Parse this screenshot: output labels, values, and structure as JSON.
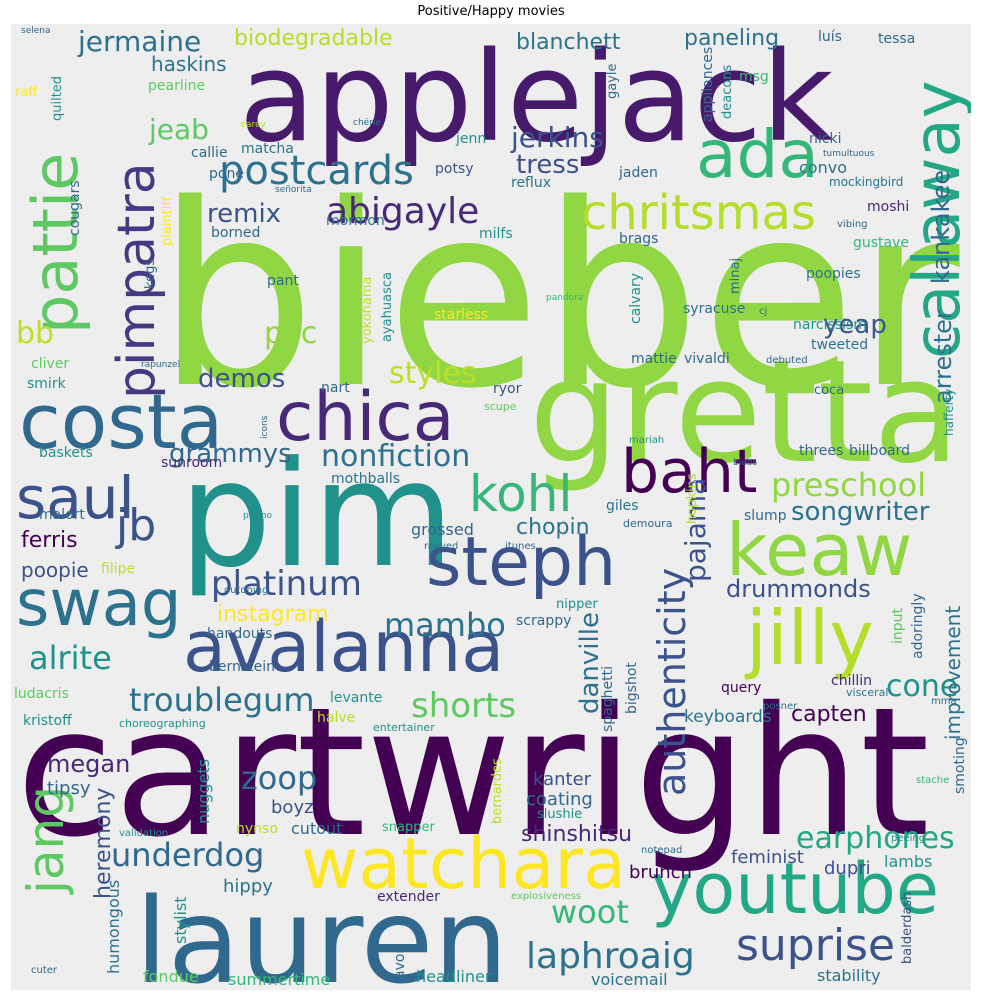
{
  "title": "Positive/Happy movies",
  "colors": {
    "purple": "#440154",
    "indigo": "#3b528b",
    "blue": "#31688e",
    "teal": "#21918c",
    "green": "#35b779",
    "lime": "#90d743",
    "yellow": "#fde725"
  },
  "words": {
    "bieber": "bieber",
    "cartwright": "cartwright",
    "applejack": "applejack",
    "pim": "pim",
    "gretta": "gretta",
    "lauren": "lauren",
    "watchara": "watchara",
    "youtube": "youtube",
    "costa": "costa",
    "chica": "chica",
    "steph": "steph",
    "avalanna": "avalanna",
    "keaw": "keaw",
    "jilly": "jilly",
    "swag": "swag",
    "saul": "saul",
    "baht": "baht",
    "kohl": "kohl",
    "ada": "ada",
    "pimpatra": "pimpatra",
    "pattie": "pattie",
    "callaway": "callaway",
    "postcards": "postcards",
    "chritsmas": "chritsmas",
    "abigayle": "abigayle",
    "platinum": "platinum",
    "suprise": "suprise",
    "laphroaig": "laphroaig",
    "troublegum": "troublegum",
    "authenticity": "authenticity",
    "jang": "jang",
    "jb": "jb",
    "alrite": "alrite",
    "mambo": "mambo",
    "shorts": "shorts",
    "underdog": "underdog",
    "woot": "woot",
    "earphones": "earphones",
    "nonfiction": "nonfiction",
    "grammys": "grammys",
    "preschool": "preschool",
    "songwriter": "songwriter",
    "styles": "styles",
    "demos": "demos",
    "remix": "remix",
    "jeab": "jeab",
    "jermaine": "jermaine",
    "jerkins": "jerkins",
    "tress": "tress",
    "yeap": "yeap",
    "pvc": "pvc",
    "zoop": "zoop",
    "pajama": "pajama",
    "cone": "cone",
    "drummonds": "drummonds",
    "danville": "danville",
    "bb": "bb",
    "biodegradable": "biodegradable",
    "blanchett": "blanchett",
    "paneling": "paneling",
    "haskins": "haskins",
    "arrester": "arrester",
    "kankakee": "kankakee",
    "megan": "megan",
    "heremony": "heremony",
    "shinshitsu": "shinshitsu",
    "instagram": "instagram",
    "improvement": "improvement",
    "capten": "capten",
    "keyboards": "keyboards",
    "chopin": "chopin",
    "ferris": "ferris",
    "poopie": "poopie",
    "tipsy": "tipsy",
    "boyz": "boyz",
    "kanter": "kanter",
    "coating": "coating",
    "nuggets": "nuggets",
    "humongous": "humongous",
    "hippy": "hippy",
    "brunch": "brunch",
    "feminist": "feminist",
    "dupri": "dupri",
    "lambs": "lambs",
    "stylist": "stylist",
    "fondue": "fondue",
    "summertime": "summertime",
    "headliner": "headliner",
    "voicemail": "voicemail",
    "stability": "stability",
    "balderdash": "balderdash",
    "avon": "avon",
    "extender": "extender",
    "cutout": "cutout",
    "nynso": "nynso",
    "bernardes": "bernardes",
    "slushie": "slushie",
    "snapper": "snapper",
    "levante": "levante",
    "halve": "halve",
    "kristoff": "kristoff",
    "ludacris": "ludacris",
    "bernstein": "bernstein",
    "handouts": "handouts",
    "filipe": "filipe",
    "spaghetti": "spaghetti",
    "bigshot": "bigshot",
    "query": "query",
    "chillin": "chillin",
    "scrappy": "scrappy",
    "nipper": "nipper",
    "adoringly": "adoringly",
    "input": "input",
    "smoting": "smoting",
    "visceral": "visceral",
    "posner": "posner",
    "mma": "mma",
    "choreographing": "choreographing",
    "entertainer": "entertainer",
    "peeing": "peeing",
    "stache": "stache",
    "validation": "validation",
    "notepad": "notepad",
    "explosiveness": "explosiveness",
    "cuter": "cuter",
    "grossed": "grossed",
    "giles": "giles",
    "slump": "slump",
    "hopkins": "hopkins",
    "demoura": "demoura",
    "revved": "revved",
    "itunes": "itunes",
    "outdoing": "outdoing",
    "promo": "promo",
    "malort": "malort",
    "sunroom": "sunroom",
    "mothballs": "mothballs",
    "baskets": "baskets",
    "icons": "icons",
    "mariah": "mariah",
    "biebs": "biebs",
    "threes": "threes",
    "billboard": "billboard",
    "hafferty": "hafferty",
    "coca": "coca",
    "scupe": "scupe",
    "ryor": "ryor",
    "nart": "nart",
    "mattie": "mattie",
    "vivaldi": "vivaldi",
    "debuted": "debuted",
    "smirk": "smirk",
    "cliver": "cliver",
    "rapunzel": "rapunzel",
    "tweeted": "tweeted",
    "narcissism": "narcissism",
    "poopies": "poopies",
    "syracuse": "syracuse",
    "cj": "cj",
    "starless": "starless",
    "pandora": "pandora",
    "calvary": "calvary",
    "minaj": "minaj",
    "yokohama": "yokohama",
    "ayahuasca": "ayahuasca",
    "pant": "pant",
    "mormon": "mormon",
    "milfs": "milfs",
    "brags": "brags",
    "borned": "borned",
    "gustave": "gustave",
    "vibing": "vibing",
    "moshi": "moshi",
    "kegs": "kegs",
    "plaintiff": "plaintiff",
    "cougars": "cougars",
    "mockingbird": "mockingbird",
    "tumultuous": "tumultuous",
    "nicki": "nicki",
    "convo": "convo",
    "jaden": "jaden",
    "reflux": "reflux",
    "potsy": "potsy",
    "señorita": "señorita",
    "pone": "pone",
    "callie": "callie",
    "matcha": "matcha",
    "jenn": "jenn",
    "appliances": "appliances",
    "deacons": "deacons",
    "gayle": "gayle",
    "msg": "msg",
    "chérie": "chérie",
    "carey": "carey",
    "quilted": "quilted",
    "pearline": "pearline",
    "raff": "raff",
    "selena": "selena",
    "luís": "luís",
    "tessa": "tessa"
  }
}
